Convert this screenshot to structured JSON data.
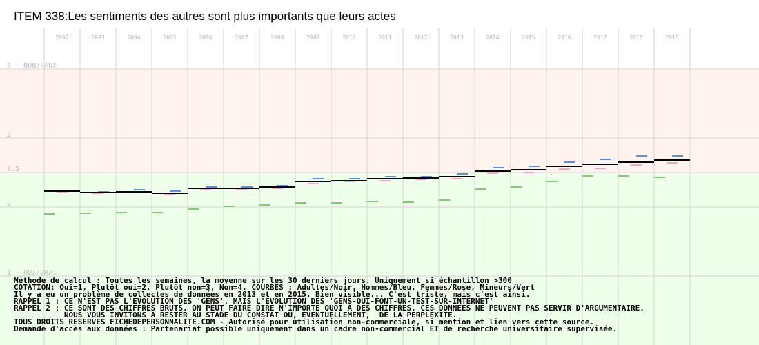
{
  "chart_data": {
    "type": "line",
    "title": "ITEM 338:Les sentiments des autres sont plus importants que leurs actes",
    "x": [
      "2002",
      "2003",
      "2004",
      "2005",
      "2006",
      "2007",
      "2008",
      "2009",
      "2010",
      "2011",
      "2012",
      "2013",
      "2014",
      "2015",
      "2016",
      "2017",
      "2018",
      "2019"
    ],
    "ylim": [
      1,
      4
    ],
    "ytick_labels": [
      {
        "value": 4,
        "label": "4 - NON/FAUX"
      },
      {
        "value": 3,
        "label": "3"
      },
      {
        "value": 2.5,
        "label": "2.5"
      },
      {
        "value": 2,
        "label": "2"
      },
      {
        "value": 1,
        "label": "1 - OUI/VRAI"
      }
    ],
    "bands": [
      {
        "from": 2.5,
        "to": 4,
        "color": "#fff3ee"
      },
      {
        "from": 1,
        "to": 2.5,
        "color": "#eeffea"
      }
    ],
    "grid": true,
    "series": [
      {
        "key": "adultes",
        "color": "#000000",
        "values": [
          2.23,
          2.21,
          2.22,
          2.2,
          2.27,
          2.27,
          2.29,
          2.37,
          2.38,
          2.41,
          2.42,
          2.44,
          2.52,
          2.54,
          2.59,
          2.62,
          2.65,
          2.68
        ]
      },
      {
        "key": "hommes",
        "color": "#4f8fff",
        "values": [
          2.23,
          2.22,
          2.25,
          2.23,
          2.29,
          2.29,
          2.31,
          2.41,
          2.41,
          2.44,
          2.44,
          2.48,
          2.57,
          2.59,
          2.65,
          2.69,
          2.74,
          2.74
        ]
      },
      {
        "key": "femmes",
        "color": "#f4a6c7",
        "values": [
          2.22,
          2.2,
          2.21,
          2.18,
          2.25,
          2.25,
          2.27,
          2.34,
          2.37,
          2.38,
          2.4,
          2.41,
          2.49,
          2.5,
          2.55,
          2.56,
          2.61,
          2.64
        ]
      },
      {
        "key": "mineurs",
        "color": "#7cd26a",
        "values": [
          1.9,
          1.91,
          1.92,
          1.92,
          1.97,
          2.01,
          2.03,
          2.06,
          2.06,
          2.08,
          2.07,
          2.1,
          2.26,
          2.29,
          2.37,
          2.45,
          2.45,
          2.43
        ]
      }
    ]
  },
  "notes": [
    "Méthode de calcul : Toutes les semaines, la moyenne sur les 30 derniers jours. Uniquement si échantillon >300",
    "COTATION: Oui=1, Plutôt oui=2, Plutôt non=3, Non=4. COURBES : Adultes/Noir, Hommes/Bleu, Femmes/Rose, Mineurs/Vert",
    "Il y a eu un problème de collectes de données en 2013 et en 2015. Bien visible... C'est triste, mais c'est ainsi.",
    "RAPPEL 1 : CE N'EST PAS L'EVOLUTION DES 'GENS', MAIS L'EVOLUTION DES 'GENS-QUI-FONT-UN-TEST-SUR-INTERNET'",
    "RAPPEL 2 : CE SONT DES CHIFFRES BRUTS. ON PEUT FAIRE DIRE N'IMPORTE QUOI A DES CHIFFRES. CES DONNEES NE PEUVENT PAS SERVIR D'ARGUMENTAIRE.",
    "           NOUS VOUS INVITONS A RESTER AU STADE DU CONSTAT OU, EVENTUELLEMENT,  DE LA PERPLEXITE.",
    "TOUS DROITS RESERVES FICHEDEPERSONNALITE.COM - Autorisé pour utilisation non-commerciale, si mention et lien vers cette source.",
    "Demande d'accès aux données : Partenariat possible uniquement dans un cadre non-commercial ET de recherche universitaire supervisée."
  ]
}
